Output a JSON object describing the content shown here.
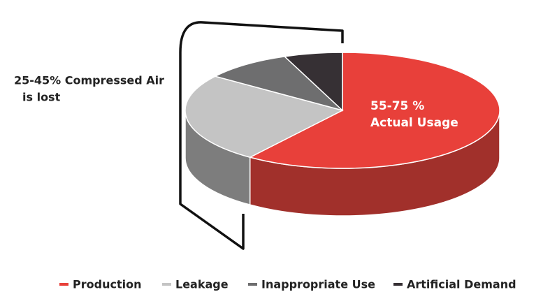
{
  "chart_data": {
    "type": "pie3d",
    "categories": [
      "Production",
      "Leakage",
      "Inappropriate Use",
      "Artificial Demand"
    ],
    "values": [
      60,
      25,
      9,
      6
    ],
    "colors": [
      "#e8403a",
      "#c4c4c4",
      "#6e6e6f",
      "#363034"
    ],
    "side_colors": [
      "#a1302b",
      "#7d7d7d",
      "#505050",
      "#262224"
    ],
    "annotations": [
      [
        "55-75 %",
        "Actual Usage"
      ],
      [
        "25-45% Compressed Air",
        "is lost"
      ]
    ]
  }
}
